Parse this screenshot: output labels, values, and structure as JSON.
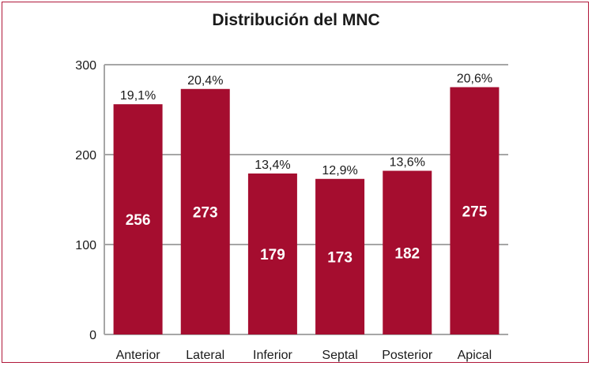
{
  "chart_data": {
    "type": "bar",
    "title": "Distribución del MNC",
    "categories": [
      "Anterior",
      "Lateral",
      "Inferior",
      "Septal",
      "Posterior",
      "Apical"
    ],
    "values": [
      256,
      273,
      179,
      173,
      182,
      275
    ],
    "percent_labels": [
      "19,1%",
      "20,4%",
      "13,4%",
      "12,9%",
      "13,6%",
      "20,6%"
    ],
    "value_labels": [
      "256",
      "273",
      "179",
      "173",
      "182",
      "275"
    ],
    "ylim": [
      0,
      300
    ],
    "yticks": [
      0,
      100,
      200,
      300
    ],
    "ytick_labels": [
      "0",
      "100",
      "200",
      "300"
    ],
    "grid": true,
    "legend": "none",
    "bar_color": "#a50d2f",
    "frame_color": "#b0183a",
    "grid_color": "#a6a6a6"
  }
}
